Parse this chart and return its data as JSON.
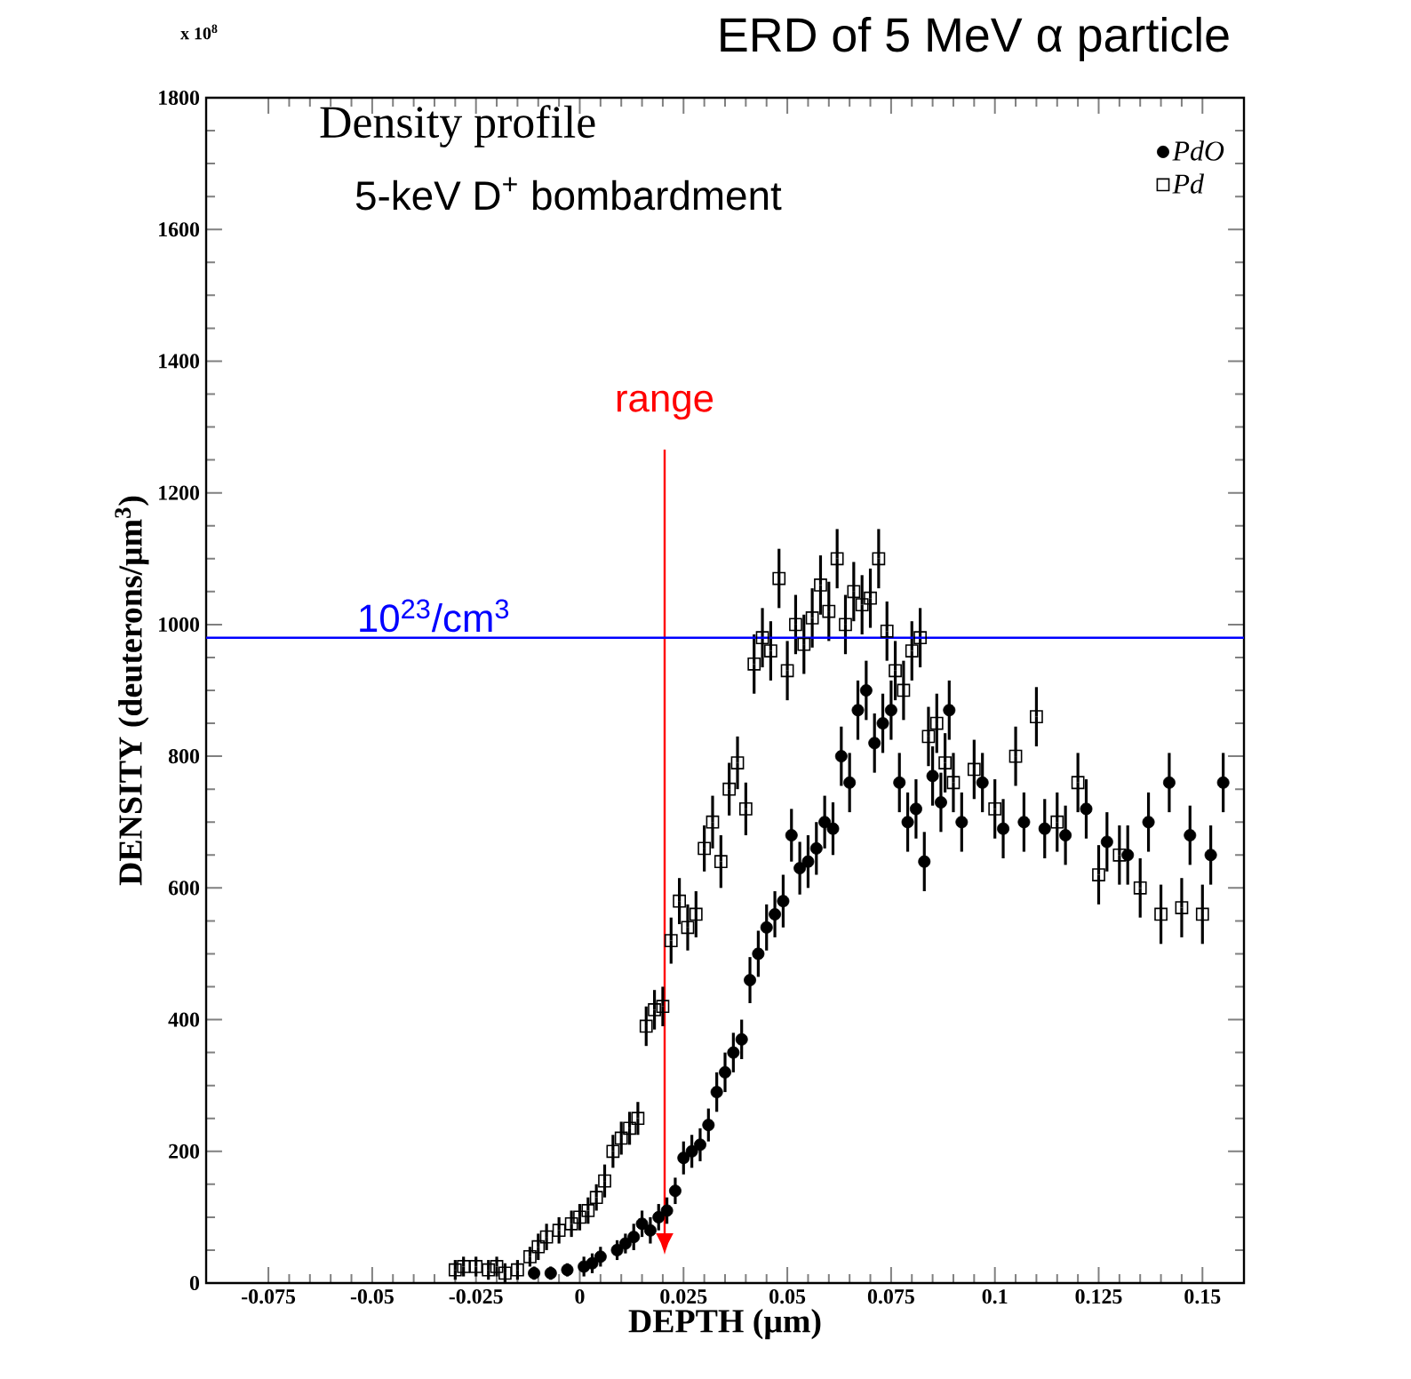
{
  "chart_data": {
    "type": "scatter",
    "title": "ERD of 5 MeV α particle",
    "xlabel": "DEPTH (μm)",
    "ylabel": "DENSITY (deuterons/μm$^{3}$)",
    "xlim": [
      -0.09,
      0.16
    ],
    "xticks": [
      -0.075,
      -0.05,
      -0.025,
      0,
      0.025,
      0.05,
      0.075,
      0.1,
      0.125,
      0.15
    ],
    "ylim": [
      0,
      1800
    ],
    "yticks": [
      0,
      200,
      400,
      600,
      800,
      1000,
      1200,
      1400,
      1600,
      1800
    ],
    "legend": "top right",
    "grid": false,
    "annotations": [
      "x 10$^{8}$",
      "Density profile",
      "5-keV D$^{+}$ bombardment",
      "range"
    ],
    "ref_lines": [
      {
        "axis": "y",
        "value": 980,
        "label": "10$^{23}$/cm$^{3}$",
        "color": "#0000ff"
      }
    ],
    "series": [
      {
        "name": "PdO",
        "color": "#000000",
        "marker": "circle",
        "x": [
          -0.011,
          -0.007,
          -0.003,
          0.001,
          0.003,
          0.005,
          0.009,
          0.011,
          0.013,
          0.015,
          0.017,
          0.019,
          0.021,
          0.023,
          0.025,
          0.027,
          0.029,
          0.031,
          0.033,
          0.035,
          0.037,
          0.039,
          0.041,
          0.043,
          0.045,
          0.047,
          0.049,
          0.051,
          0.053,
          0.055,
          0.057,
          0.059,
          0.061,
          0.063,
          0.065,
          0.067,
          0.069,
          0.071,
          0.073,
          0.075,
          0.077,
          0.079,
          0.081,
          0.083,
          0.085,
          0.087,
          0.089,
          0.092,
          0.097,
          0.102,
          0.107,
          0.112,
          0.117,
          0.122,
          0.127,
          0.132,
          0.137,
          0.142,
          0.147,
          0.152,
          0.155
        ],
        "values": [
          15,
          15,
          20,
          25,
          30,
          40,
          50,
          60,
          70,
          90,
          80,
          100,
          110,
          140,
          190,
          200,
          210,
          240,
          290,
          320,
          350,
          370,
          460,
          500,
          540,
          560,
          580,
          680,
          630,
          640,
          660,
          700,
          690,
          800,
          760,
          870,
          900,
          820,
          850,
          870,
          760,
          700,
          720,
          640,
          770,
          730,
          870,
          700,
          760,
          690,
          700,
          690,
          680,
          720,
          670,
          650,
          700,
          760,
          680,
          650,
          760
        ],
        "errors": [
          10,
          10,
          10,
          15,
          15,
          15,
          15,
          15,
          20,
          20,
          20,
          20,
          20,
          20,
          25,
          25,
          25,
          25,
          30,
          30,
          30,
          30,
          35,
          35,
          35,
          35,
          40,
          40,
          40,
          40,
          40,
          40,
          40,
          45,
          45,
          45,
          45,
          45,
          45,
          45,
          45,
          45,
          45,
          45,
          45,
          45,
          45,
          45,
          45,
          45,
          45,
          45,
          45,
          45,
          45,
          45,
          45,
          45,
          45,
          45,
          45
        ]
      },
      {
        "name": "Pd",
        "color": "#000000",
        "marker": "square",
        "x": [
          -0.03,
          -0.028,
          -0.025,
          -0.022,
          -0.02,
          -0.018,
          -0.015,
          -0.012,
          -0.01,
          -0.008,
          -0.005,
          -0.002,
          0,
          0.002,
          0.004,
          0.006,
          0.008,
          0.01,
          0.012,
          0.014,
          0.016,
          0.018,
          0.02,
          0.022,
          0.024,
          0.026,
          0.028,
          0.03,
          0.032,
          0.034,
          0.036,
          0.038,
          0.04,
          0.042,
          0.044,
          0.046,
          0.048,
          0.05,
          0.052,
          0.054,
          0.056,
          0.058,
          0.06,
          0.062,
          0.064,
          0.066,
          0.068,
          0.07,
          0.072,
          0.074,
          0.076,
          0.078,
          0.08,
          0.082,
          0.084,
          0.086,
          0.088,
          0.09,
          0.095,
          0.1,
          0.105,
          0.11,
          0.115,
          0.12,
          0.125,
          0.13,
          0.135,
          0.14,
          0.145,
          0.15
        ],
        "values": [
          20,
          25,
          25,
          20,
          25,
          15,
          20,
          40,
          55,
          70,
          80,
          90,
          100,
          110,
          130,
          155,
          200,
          220,
          235,
          250,
          390,
          415,
          420,
          520,
          580,
          540,
          560,
          660,
          700,
          640,
          750,
          790,
          720,
          940,
          980,
          960,
          1070,
          930,
          1000,
          970,
          1010,
          1060,
          1020,
          1100,
          1000,
          1050,
          1030,
          1040,
          1100,
          990,
          930,
          900,
          960,
          980,
          830,
          850,
          790,
          760,
          780,
          720,
          800,
          860,
          700,
          760,
          620,
          650,
          600,
          560,
          570,
          560
        ],
        "errors": [
          15,
          15,
          15,
          15,
          15,
          15,
          15,
          15,
          20,
          20,
          20,
          20,
          20,
          20,
          20,
          25,
          25,
          25,
          25,
          25,
          30,
          30,
          30,
          35,
          35,
          35,
          35,
          35,
          40,
          40,
          40,
          40,
          40,
          45,
          45,
          45,
          45,
          45,
          45,
          45,
          45,
          45,
          45,
          45,
          45,
          45,
          45,
          45,
          45,
          45,
          45,
          45,
          45,
          45,
          45,
          45,
          45,
          45,
          45,
          45,
          45,
          45,
          45,
          45,
          45,
          45,
          45,
          45,
          45,
          45
        ]
      }
    ]
  }
}
